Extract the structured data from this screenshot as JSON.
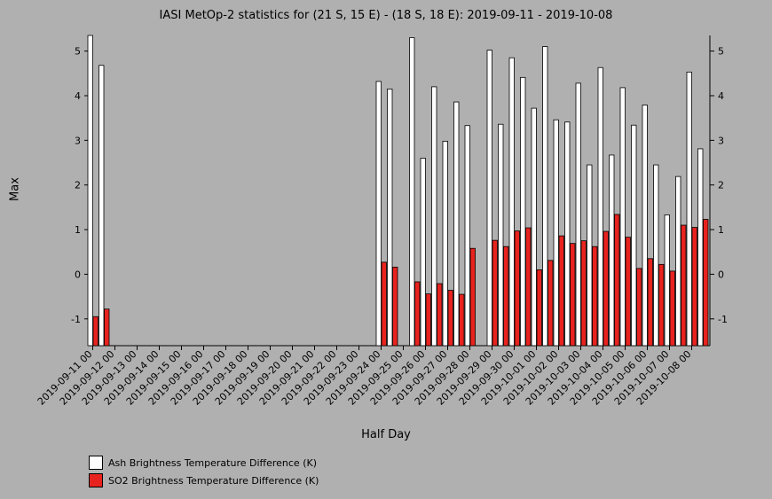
{
  "chart_data": {
    "type": "bar",
    "title": "IASI MetOp-2 statistics for (21 S, 15 E) - (18 S, 18 E): 2019-09-11 - 2019-10-08",
    "xlabel": "Half Day",
    "ylabel": "Max",
    "ylim": [
      -1.6,
      5.35
    ],
    "yticks": [
      -1,
      0,
      1,
      2,
      3,
      4,
      5
    ],
    "xtick_labels": [
      "2019-09-11 00",
      "2019-09-12 00",
      "2019-09-13 00",
      "2019-09-14 00",
      "2019-09-15 00",
      "2019-09-16 00",
      "2019-09-17 00",
      "2019-09-18 00",
      "2019-09-19 00",
      "2019-09-20 00",
      "2019-09-21 00",
      "2019-09-22 00",
      "2019-09-23 00",
      "2019-09-24 00",
      "2019-09-25 00",
      "2019-09-26 00",
      "2019-09-27 00",
      "2019-09-28 00",
      "2019-09-29 00",
      "2019-09-30 00",
      "2019-10-01 00",
      "2019-10-02 00",
      "2019-10-03 00",
      "2019-10-04 00",
      "2019-10-05 00",
      "2019-10-06 00",
      "2019-10-07 00",
      "2019-10-08 00"
    ],
    "categories": [
      "2019-09-11 00",
      "2019-09-11 12",
      "2019-09-12 00",
      "2019-09-12 12",
      "2019-09-13 00",
      "2019-09-13 12",
      "2019-09-14 00",
      "2019-09-14 12",
      "2019-09-15 00",
      "2019-09-15 12",
      "2019-09-16 00",
      "2019-09-16 12",
      "2019-09-17 00",
      "2019-09-17 12",
      "2019-09-18 00",
      "2019-09-18 12",
      "2019-09-19 00",
      "2019-09-19 12",
      "2019-09-20 00",
      "2019-09-20 12",
      "2019-09-21 00",
      "2019-09-21 12",
      "2019-09-22 00",
      "2019-09-22 12",
      "2019-09-23 00",
      "2019-09-23 12",
      "2019-09-24 00",
      "2019-09-24 12",
      "2019-09-25 00",
      "2019-09-25 12",
      "2019-09-26 00",
      "2019-09-26 12",
      "2019-09-27 00",
      "2019-09-27 12",
      "2019-09-28 00",
      "2019-09-28 12",
      "2019-09-29 00",
      "2019-09-29 12",
      "2019-09-30 00",
      "2019-09-30 12",
      "2019-10-01 00",
      "2019-10-01 12",
      "2019-10-02 00",
      "2019-10-02 12",
      "2019-10-03 00",
      "2019-10-03 12",
      "2019-10-04 00",
      "2019-10-04 12",
      "2019-10-05 00",
      "2019-10-05 12",
      "2019-10-06 00",
      "2019-10-06 12",
      "2019-10-07 00",
      "2019-10-07 12",
      "2019-10-08 00",
      "2019-10-08 12"
    ],
    "series": [
      {
        "name": "Ash Brightness Temperature Difference (K)",
        "color": "#ffffff",
        "values": [
          5.35,
          4.68,
          null,
          null,
          null,
          null,
          null,
          null,
          null,
          null,
          null,
          null,
          null,
          null,
          null,
          null,
          null,
          null,
          null,
          null,
          null,
          null,
          null,
          null,
          null,
          null,
          4.32,
          4.15,
          null,
          5.3,
          2.6,
          4.2,
          2.98,
          3.86,
          3.33,
          null,
          5.02,
          3.36,
          4.85,
          4.41,
          3.72,
          5.1,
          3.46,
          3.41,
          4.28,
          2.45,
          4.63,
          2.67,
          4.18,
          3.34,
          3.79,
          2.45,
          1.33,
          2.19,
          4.53,
          2.81
        ]
      },
      {
        "name": "SO2 Brightness Temperature Difference (K)",
        "color": "#e8231f",
        "values": [
          -0.95,
          -0.78,
          null,
          null,
          null,
          null,
          null,
          null,
          null,
          null,
          null,
          null,
          null,
          null,
          null,
          null,
          null,
          null,
          null,
          null,
          null,
          null,
          null,
          null,
          null,
          null,
          0.27,
          0.16,
          null,
          -0.17,
          -0.44,
          -0.21,
          -0.36,
          -0.45,
          0.58,
          null,
          0.76,
          0.62,
          0.97,
          1.04,
          0.1,
          0.31,
          0.86,
          0.69,
          0.75,
          0.62,
          0.96,
          1.34,
          0.83,
          0.13,
          0.35,
          0.22,
          0.07,
          1.1,
          1.05,
          1.23
        ]
      }
    ],
    "legend_position": "bottom-left",
    "grid": false
  }
}
